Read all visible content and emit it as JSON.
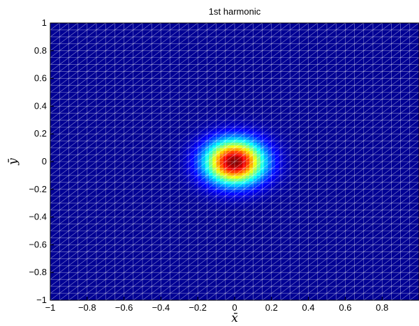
{
  "chart_data": {
    "type": "heatmap",
    "title": "1st harmonic",
    "xlabel": "x̄",
    "ylabel": "ȳ",
    "xlim": [
      -1,
      1
    ],
    "ylim": [
      -1,
      1
    ],
    "x_ticks": [
      "−1",
      "−0.8",
      "−0.6",
      "−0.4",
      "−0.2",
      "0",
      "0.2",
      "0.4",
      "0.6",
      "0.8",
      "1"
    ],
    "y_ticks": [
      "1",
      "0.8",
      "0.6",
      "0.4",
      "0.2",
      "0",
      "−0.2",
      "−0.4",
      "−0.6",
      "−0.8",
      "−1"
    ],
    "x_tick_values": [
      -1,
      -0.8,
      -0.6,
      -0.4,
      -0.2,
      0,
      0.2,
      0.4,
      0.6,
      0.8,
      1
    ],
    "y_tick_values": [
      1,
      0.8,
      0.6,
      0.4,
      0.2,
      0,
      -0.2,
      -0.4,
      -0.6,
      -0.8,
      -1
    ],
    "colormap": "jet",
    "field": {
      "shape": "gaussian",
      "peak_x": 0,
      "peak_y": 0,
      "sigma": 0.11,
      "max": 1,
      "background": 0.02
    },
    "mesh": "triangulated grid, white edges",
    "mesh_color": "#ffffff"
  }
}
